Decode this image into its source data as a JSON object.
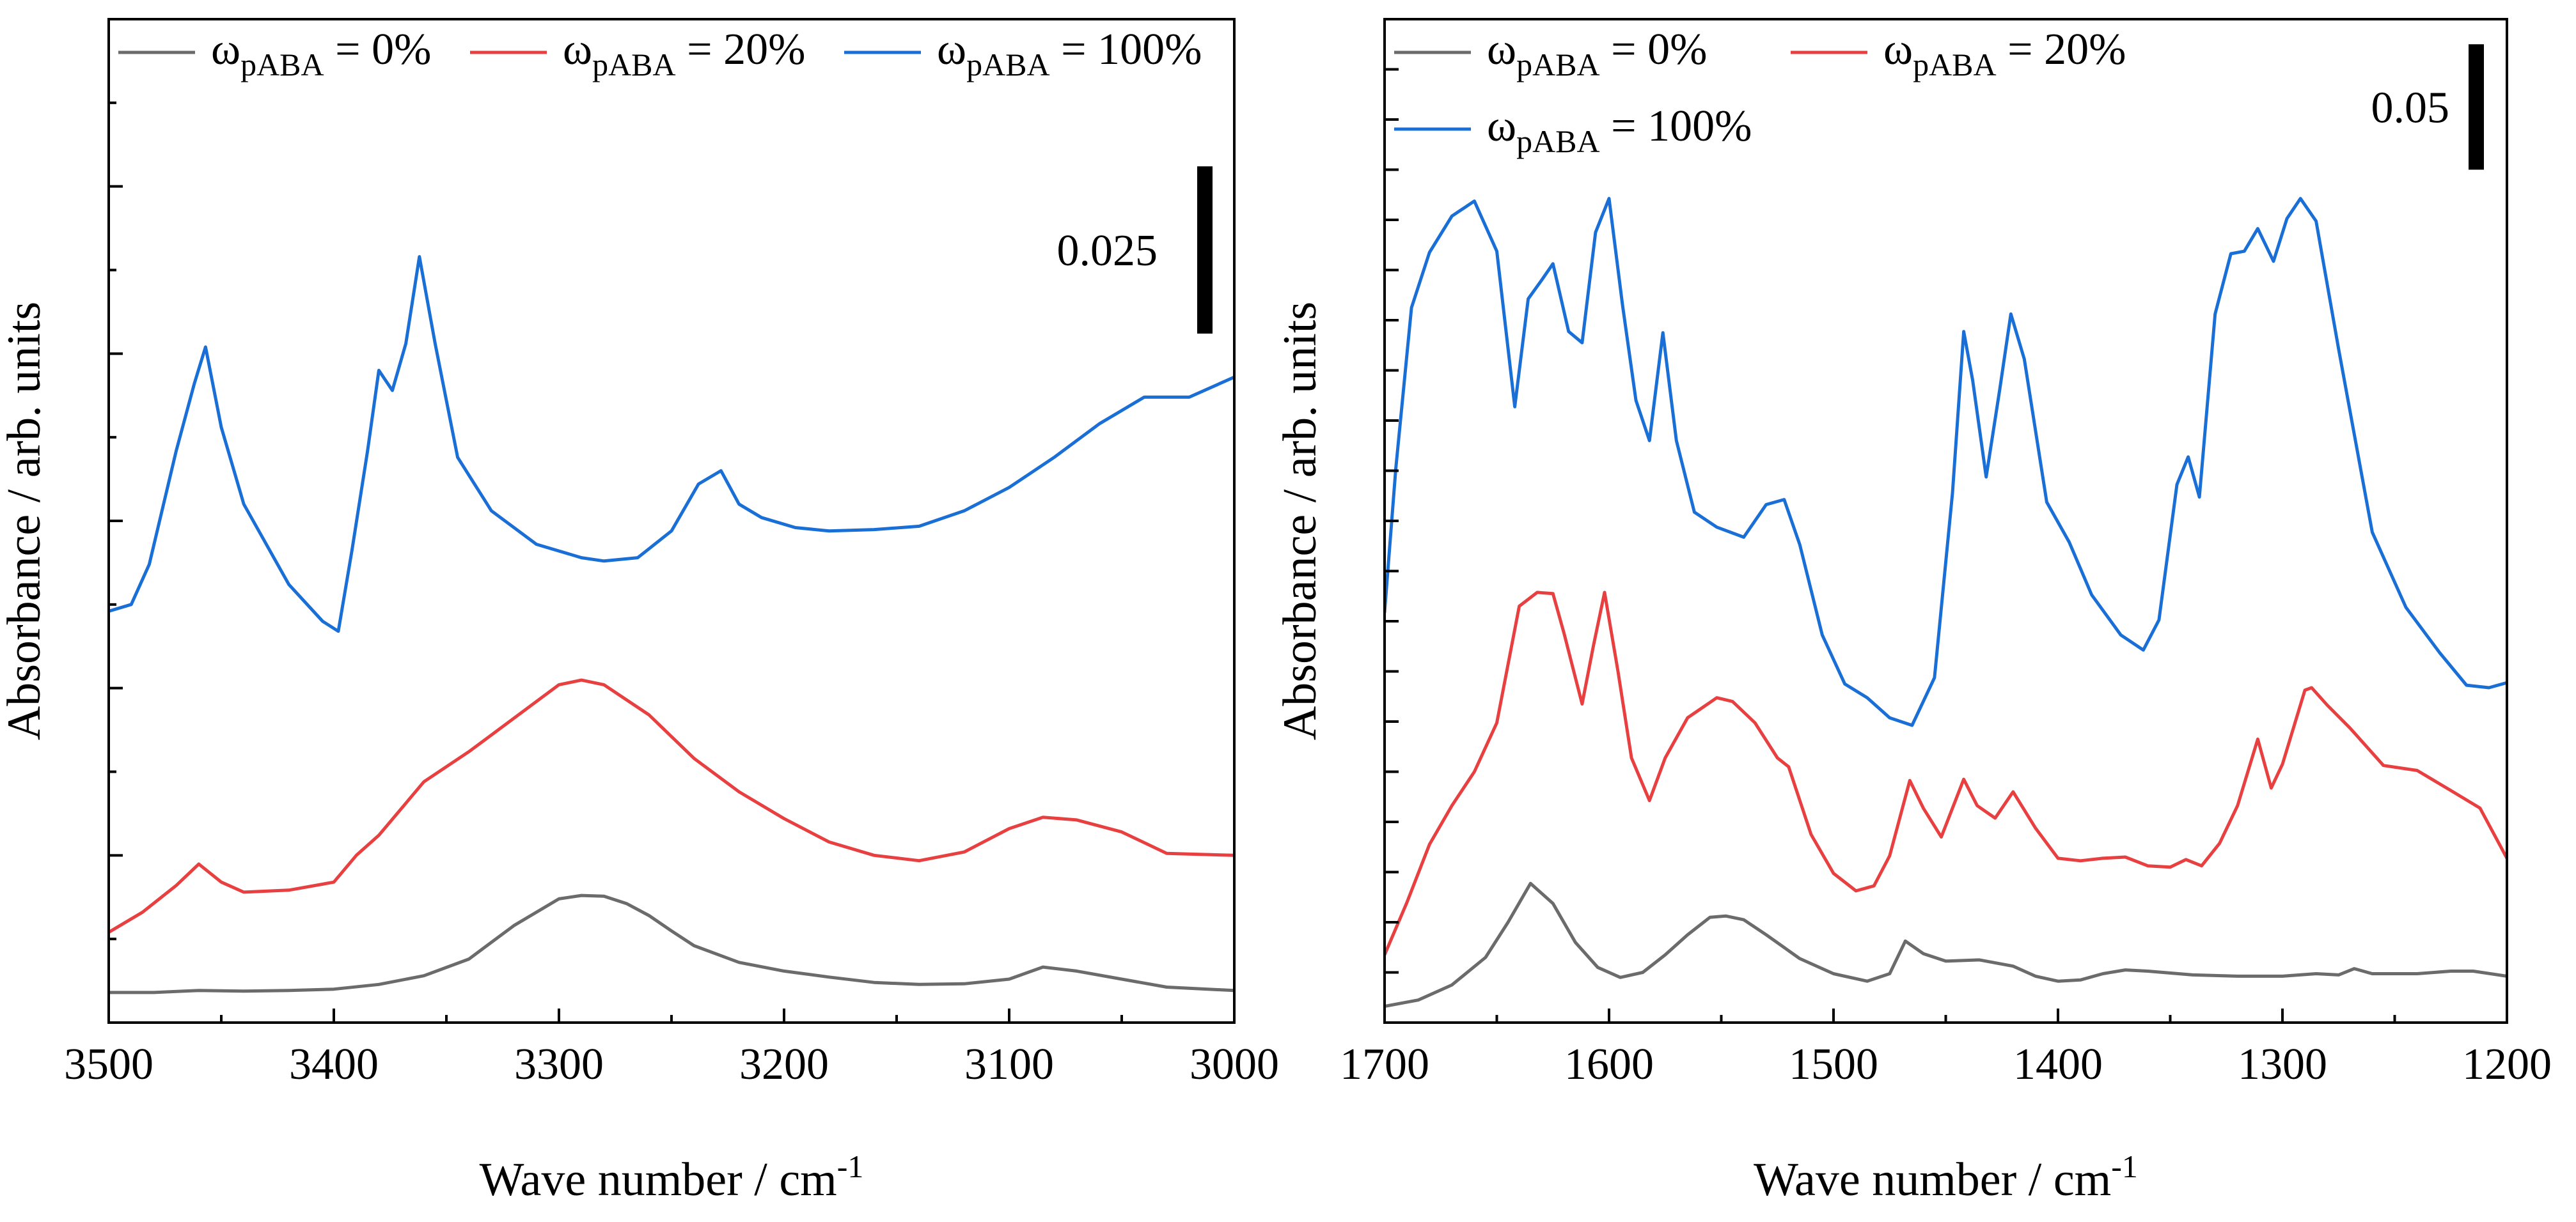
{
  "chart_data": [
    {
      "type": "line",
      "xlabel": "Wave number / cm",
      "xlabel_sup": "-1",
      "ylabel": "Absorbance / arb. units",
      "xlim": [
        3500,
        3000
      ],
      "ylim": [
        0,
        0.15
      ],
      "x_ticks": [
        3500,
        3400,
        3300,
        3200,
        3100,
        3000
      ],
      "x_tick_labels": [
        "3500",
        "3400",
        "3300",
        "3200",
        "3100",
        "3000"
      ],
      "y_tick_labels_shown": false,
      "scale_bar": {
        "label": "0.025",
        "value": 0.025,
        "y_range": [
          0.103,
          0.128
        ]
      },
      "legend_symbol": "ω",
      "legend_subscript": "pABA",
      "series": [
        {
          "name": "ωpABA = 0%",
          "legend_value": " = 0%",
          "color": "#6b6b6b",
          "x": [
            3500,
            3480,
            3460,
            3440,
            3420,
            3400,
            3380,
            3360,
            3340,
            3320,
            3300,
            3290,
            3280,
            3270,
            3260,
            3250,
            3240,
            3220,
            3200,
            3180,
            3160,
            3140,
            3120,
            3100,
            3085,
            3070,
            3050,
            3030,
            3000
          ],
          "y": [
            0.0045,
            0.0045,
            0.0048,
            0.0047,
            0.0048,
            0.005,
            0.0057,
            0.007,
            0.0095,
            0.0145,
            0.0185,
            0.019,
            0.0189,
            0.0178,
            0.016,
            0.0137,
            0.0115,
            0.009,
            0.0077,
            0.0068,
            0.006,
            0.0057,
            0.0058,
            0.0065,
            0.0083,
            0.0077,
            0.0065,
            0.0053,
            0.0048
          ]
        },
        {
          "name": "ωpABA = 20%",
          "legend_value": " = 20%",
          "color": "#e84040",
          "x": [
            3500,
            3485,
            3470,
            3460,
            3450,
            3440,
            3420,
            3400,
            3390,
            3380,
            3370,
            3360,
            3340,
            3320,
            3300,
            3290,
            3280,
            3260,
            3240,
            3220,
            3200,
            3180,
            3160,
            3140,
            3120,
            3100,
            3085,
            3070,
            3050,
            3030,
            3000
          ],
          "y": [
            0.0135,
            0.0165,
            0.0205,
            0.0237,
            0.021,
            0.0195,
            0.0198,
            0.021,
            0.025,
            0.028,
            0.032,
            0.036,
            0.0405,
            0.0455,
            0.0505,
            0.0512,
            0.0505,
            0.046,
            0.0395,
            0.0345,
            0.0305,
            0.027,
            0.025,
            0.0242,
            0.0255,
            0.029,
            0.0307,
            0.0303,
            0.0285,
            0.0253,
            0.025
          ]
        },
        {
          "name": "ωpABA = 100%",
          "legend_value": " = 100%",
          "color": "#1a6fd6",
          "x": [
            3500,
            3490,
            3482,
            3470,
            3462,
            3457,
            3450,
            3440,
            3420,
            3405,
            3398,
            3392,
            3385,
            3380,
            3374,
            3368,
            3362,
            3355,
            3345,
            3330,
            3310,
            3290,
            3280,
            3265,
            3250,
            3238,
            3228,
            3220,
            3210,
            3195,
            3180,
            3160,
            3140,
            3120,
            3100,
            3080,
            3060,
            3040,
            3020,
            3000
          ],
          "y": [
            0.0615,
            0.0625,
            0.0685,
            0.0855,
            0.0955,
            0.101,
            0.089,
            0.0775,
            0.0655,
            0.06,
            0.0585,
            0.0705,
            0.0855,
            0.0975,
            0.0945,
            0.1015,
            0.1145,
            0.1015,
            0.0845,
            0.0765,
            0.0715,
            0.0695,
            0.069,
            0.0695,
            0.0735,
            0.0805,
            0.0825,
            0.0775,
            0.0755,
            0.074,
            0.0735,
            0.0737,
            0.0742,
            0.0765,
            0.08,
            0.0845,
            0.0895,
            0.0935,
            0.0935,
            0.0965
          ]
        }
      ]
    },
    {
      "type": "line",
      "xlabel": "Wave number / cm",
      "xlabel_sup": "-1",
      "ylabel": "Absorbance / arb. units",
      "xlim": [
        1700,
        1200
      ],
      "ylim": [
        0,
        0.4
      ],
      "x_ticks": [
        1700,
        1600,
        1500,
        1400,
        1300,
        1200
      ],
      "x_tick_labels": [
        "1700",
        "1600",
        "1500",
        "1400",
        "1300",
        "1200"
      ],
      "y_tick_labels_shown": false,
      "scale_bar": {
        "label": "0.05",
        "value": 0.05,
        "y_range": [
          0.34,
          0.39
        ]
      },
      "legend_symbol": "ω",
      "legend_subscript": "pABA",
      "series": [
        {
          "name": "ωpABA = 0%",
          "legend_value": " = 0%",
          "color": "#6b6b6b",
          "x": [
            1700,
            1685,
            1670,
            1655,
            1645,
            1635,
            1625,
            1615,
            1605,
            1595,
            1585,
            1575,
            1565,
            1555,
            1548,
            1540,
            1530,
            1515,
            1500,
            1485,
            1475,
            1468,
            1460,
            1450,
            1435,
            1420,
            1410,
            1400,
            1390,
            1380,
            1370,
            1360,
            1340,
            1320,
            1300,
            1285,
            1275,
            1268,
            1260,
            1240,
            1225,
            1215,
            1200
          ],
          "y": [
            0.0065,
            0.009,
            0.015,
            0.026,
            0.04,
            0.0555,
            0.0475,
            0.032,
            0.022,
            0.018,
            0.02,
            0.027,
            0.035,
            0.042,
            0.0425,
            0.041,
            0.035,
            0.0255,
            0.0195,
            0.0165,
            0.0195,
            0.0325,
            0.0275,
            0.0245,
            0.025,
            0.0225,
            0.0185,
            0.0165,
            0.017,
            0.0195,
            0.021,
            0.0205,
            0.019,
            0.0185,
            0.0185,
            0.0195,
            0.019,
            0.0215,
            0.0195,
            0.0195,
            0.0205,
            0.0205,
            0.0185
          ]
        },
        {
          "name": "ωpABA = 20%",
          "legend_value": " = 20%",
          "color": "#e84040",
          "x": [
            1700,
            1690,
            1680,
            1670,
            1660,
            1650,
            1640,
            1632,
            1625,
            1620,
            1612,
            1607,
            1602,
            1596,
            1590,
            1582,
            1575,
            1565,
            1552,
            1545,
            1535,
            1525,
            1520,
            1510,
            1500,
            1490,
            1482,
            1475,
            1466,
            1460,
            1452,
            1442,
            1436,
            1428,
            1420,
            1410,
            1400,
            1390,
            1380,
            1370,
            1360,
            1350,
            1343,
            1336,
            1328,
            1320,
            1311,
            1305,
            1300,
            1290,
            1287,
            1280,
            1270,
            1255,
            1240,
            1225,
            1212,
            1200
          ],
          "y": [
            0.027,
            0.048,
            0.071,
            0.0865,
            0.1,
            0.1195,
            0.166,
            0.1715,
            0.171,
            0.155,
            0.127,
            0.15,
            0.1715,
            0.14,
            0.1055,
            0.0885,
            0.1055,
            0.1215,
            0.1295,
            0.128,
            0.1195,
            0.1055,
            0.102,
            0.075,
            0.0595,
            0.0525,
            0.0545,
            0.0665,
            0.0965,
            0.0855,
            0.074,
            0.097,
            0.0865,
            0.0815,
            0.092,
            0.0775,
            0.0655,
            0.0645,
            0.0655,
            0.066,
            0.0625,
            0.062,
            0.065,
            0.0625,
            0.0715,
            0.0865,
            0.113,
            0.0935,
            0.103,
            0.1325,
            0.1335,
            0.1265,
            0.1175,
            0.1025,
            0.1005,
            0.0925,
            0.0855,
            0.0655
          ]
        },
        {
          "name": "ωpABA = 100%",
          "legend_value": " = 100%",
          "color": "#1a6fd6",
          "x": [
            1700,
            1695,
            1688,
            1680,
            1670,
            1660,
            1650,
            1642,
            1636,
            1630,
            1625,
            1618,
            1612,
            1606,
            1600,
            1594,
            1588,
            1582,
            1576,
            1570,
            1562,
            1552,
            1540,
            1530,
            1522,
            1515,
            1505,
            1495,
            1485,
            1475,
            1465,
            1455,
            1447,
            1442,
            1438,
            1432,
            1426,
            1421,
            1415,
            1405,
            1395,
            1385,
            1372,
            1362,
            1355,
            1347,
            1342,
            1337,
            1330,
            1323,
            1317,
            1311,
            1304,
            1298,
            1292,
            1285,
            1275,
            1260,
            1245,
            1230,
            1218,
            1208,
            1200
          ],
          "y": [
            0.1635,
            0.221,
            0.285,
            0.307,
            0.3215,
            0.3275,
            0.3075,
            0.2455,
            0.2885,
            0.296,
            0.3025,
            0.2755,
            0.271,
            0.315,
            0.3285,
            0.286,
            0.248,
            0.232,
            0.275,
            0.232,
            0.2035,
            0.1975,
            0.1935,
            0.2065,
            0.2085,
            0.1905,
            0.1545,
            0.135,
            0.1295,
            0.1215,
            0.1185,
            0.1375,
            0.211,
            0.2755,
            0.256,
            0.2175,
            0.252,
            0.2825,
            0.2645,
            0.2075,
            0.1915,
            0.1705,
            0.1545,
            0.1485,
            0.1605,
            0.2145,
            0.2255,
            0.2095,
            0.2825,
            0.3065,
            0.3075,
            0.3165,
            0.3035,
            0.3205,
            0.3285,
            0.3195,
            0.2685,
            0.1955,
            0.1655,
            0.1475,
            0.1345,
            0.1335,
            0.1355
          ]
        }
      ]
    }
  ]
}
